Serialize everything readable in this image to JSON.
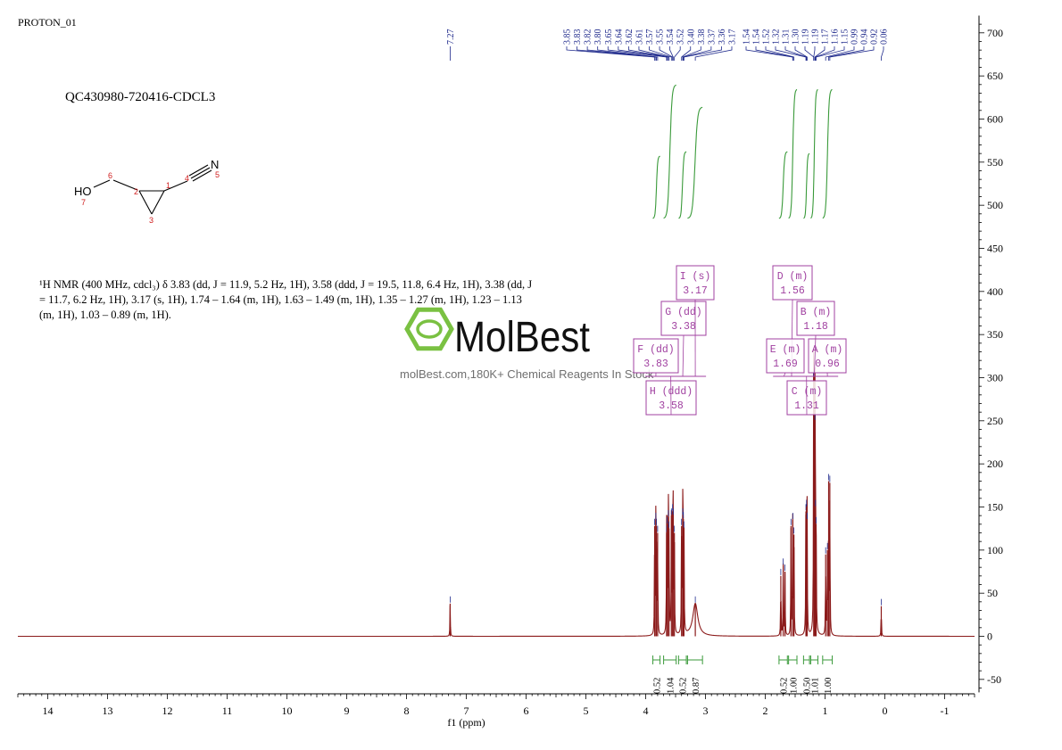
{
  "header": {
    "title": "PROTON_01",
    "sample_id": "QC430980-720416-CDCL3"
  },
  "description": {
    "text": "¹H NMR (400 MHz, cdcl₃) δ 3.83 (dd, J = 11.9, 5.2 Hz, 1H), 3.58 (ddd, J = 19.5, 11.8, 6.4 Hz, 1H), 3.38 (dd, J = 11.7, 6.2 Hz, 1H), 3.17 (s, 1H), 1.74 – 1.64 (m, 1H), 1.63 – 1.49 (m, 1H), 1.35 – 1.27 (m, 1H), 1.23 – 1.13 (m, 1H), 1.03 – 0.89 (m, 1H)."
  },
  "structure": {
    "atoms": [
      {
        "label": "HO",
        "number": "7"
      },
      {
        "label": "",
        "number": "6"
      },
      {
        "label": "",
        "number": "2"
      },
      {
        "label": "",
        "number": "3"
      },
      {
        "label": "",
        "number": "1"
      },
      {
        "label": "",
        "number": "4"
      },
      {
        "label": "N",
        "number": "5"
      }
    ]
  },
  "watermark": {
    "brand": "MolBest",
    "url": "molBest.com,180K+ Chemical Reagents In Stock"
  },
  "colors": {
    "spectrum": "#8b1a1a",
    "peak_labels": "#1f2a8c",
    "integral": "#3a9a3a",
    "multiplet_box": "#a040a0",
    "logo": "#7ac142"
  },
  "chart_data": {
    "type": "line",
    "xlabel": "f1 (ppm)",
    "ylabel": "",
    "xlim": [
      14.5,
      -1.5
    ],
    "ylim": [
      -65,
      720
    ],
    "x_ticks": [
      "14",
      "13",
      "12",
      "11",
      "10",
      "9",
      "8",
      "7",
      "6",
      "5",
      "4",
      "3",
      "2",
      "1",
      "0",
      "-1"
    ],
    "y_ticks": [
      "-50",
      "0",
      "50",
      "100",
      "150",
      "200",
      "250",
      "300",
      "350",
      "400",
      "450",
      "500",
      "550",
      "600",
      "650",
      "700"
    ],
    "peaks": [
      {
        "ppm": 7.27,
        "height": 38,
        "width": 0.004
      },
      {
        "ppm": 3.85,
        "height": 128,
        "width": 0.004
      },
      {
        "ppm": 3.83,
        "height": 135,
        "width": 0.004
      },
      {
        "ppm": 3.82,
        "height": 128,
        "width": 0.004
      },
      {
        "ppm": 3.8,
        "height": 120,
        "width": 0.004
      },
      {
        "ppm": 3.65,
        "height": 120,
        "width": 0.004
      },
      {
        "ppm": 3.64,
        "height": 130,
        "width": 0.004
      },
      {
        "ppm": 3.62,
        "height": 138,
        "width": 0.004
      },
      {
        "ppm": 3.61,
        "height": 125,
        "width": 0.004
      },
      {
        "ppm": 3.57,
        "height": 140,
        "width": 0.004
      },
      {
        "ppm": 3.55,
        "height": 145,
        "width": 0.004
      },
      {
        "ppm": 3.54,
        "height": 140,
        "width": 0.004
      },
      {
        "ppm": 3.52,
        "height": 120,
        "width": 0.004
      },
      {
        "ppm": 3.4,
        "height": 128,
        "width": 0.004
      },
      {
        "ppm": 3.38,
        "height": 140,
        "width": 0.004
      },
      {
        "ppm": 3.37,
        "height": 136,
        "width": 0.004
      },
      {
        "ppm": 3.36,
        "height": 125,
        "width": 0.004
      },
      {
        "ppm": 3.17,
        "height": 38,
        "width": 0.05
      },
      {
        "ppm": 1.74,
        "height": 70,
        "width": 0.004
      },
      {
        "ppm": 1.7,
        "height": 82,
        "width": 0.004
      },
      {
        "ppm": 1.67,
        "height": 75,
        "width": 0.004
      },
      {
        "ppm": 1.57,
        "height": 128,
        "width": 0.004
      },
      {
        "ppm": 1.54,
        "height": 135,
        "width": 0.004
      },
      {
        "ppm": 1.52,
        "height": 118,
        "width": 0.004
      },
      {
        "ppm": 1.32,
        "height": 145,
        "width": 0.004
      },
      {
        "ppm": 1.31,
        "height": 150,
        "width": 0.004
      },
      {
        "ppm": 1.3,
        "height": 135,
        "width": 0.004
      },
      {
        "ppm": 1.19,
        "height": 300,
        "width": 0.004
      },
      {
        "ppm": 1.18,
        "height": 280,
        "width": 0.004
      },
      {
        "ppm": 1.17,
        "height": 250,
        "width": 0.004
      },
      {
        "ppm": 1.16,
        "height": 150,
        "width": 0.004
      },
      {
        "ppm": 1.15,
        "height": 130,
        "width": 0.004
      },
      {
        "ppm": 0.99,
        "height": 95,
        "width": 0.004
      },
      {
        "ppm": 0.96,
        "height": 100,
        "width": 0.004
      },
      {
        "ppm": 0.94,
        "height": 180,
        "width": 0.004
      },
      {
        "ppm": 0.92,
        "height": 178,
        "width": 0.004
      },
      {
        "ppm": 0.06,
        "height": 35,
        "width": 0.004
      }
    ],
    "peak_labels": [
      "7.27",
      "3.85",
      "3.83",
      "3.82",
      "3.80",
      "3.65",
      "3.64",
      "3.62",
      "3.61",
      "3.57",
      "3.55",
      "3.54",
      "3.52",
      "3.40",
      "3.38",
      "3.37",
      "3.36",
      "3.17",
      "1.54",
      "1.54",
      "1.52",
      "1.32",
      "1.31",
      "1.30",
      "1.19",
      "1.19",
      "1.17",
      "1.16",
      "1.15",
      "0.99",
      "0.94",
      "0.92",
      "0.06"
    ],
    "integrals": [
      {
        "from": 3.88,
        "to": 3.76,
        "value": "0.52"
      },
      {
        "from": 3.7,
        "to": 3.49,
        "value": "1.04"
      },
      {
        "from": 3.45,
        "to": 3.32,
        "value": "0.52"
      },
      {
        "from": 3.3,
        "to": 3.05,
        "value": "0.87"
      },
      {
        "from": 1.77,
        "to": 1.63,
        "value": "0.52"
      },
      {
        "from": 1.61,
        "to": 1.47,
        "value": "1.00"
      },
      {
        "from": 1.36,
        "to": 1.26,
        "value": "0.50"
      },
      {
        "from": 1.24,
        "to": 1.12,
        "value": "1.01"
      },
      {
        "from": 1.04,
        "to": 0.88,
        "value": "1.00"
      }
    ],
    "multiplets": [
      {
        "letter": "A",
        "type": "m",
        "shift": "0.96"
      },
      {
        "letter": "B",
        "type": "m",
        "shift": "1.18"
      },
      {
        "letter": "C",
        "type": "m",
        "shift": "1.31"
      },
      {
        "letter": "D",
        "type": "m",
        "shift": "1.56"
      },
      {
        "letter": "E",
        "type": "m",
        "shift": "1.69"
      },
      {
        "letter": "F",
        "type": "dd",
        "shift": "3.83"
      },
      {
        "letter": "G",
        "type": "dd",
        "shift": "3.38"
      },
      {
        "letter": "H",
        "type": "ddd",
        "shift": "3.58"
      },
      {
        "letter": "I",
        "type": "s",
        "shift": "3.17"
      }
    ]
  }
}
